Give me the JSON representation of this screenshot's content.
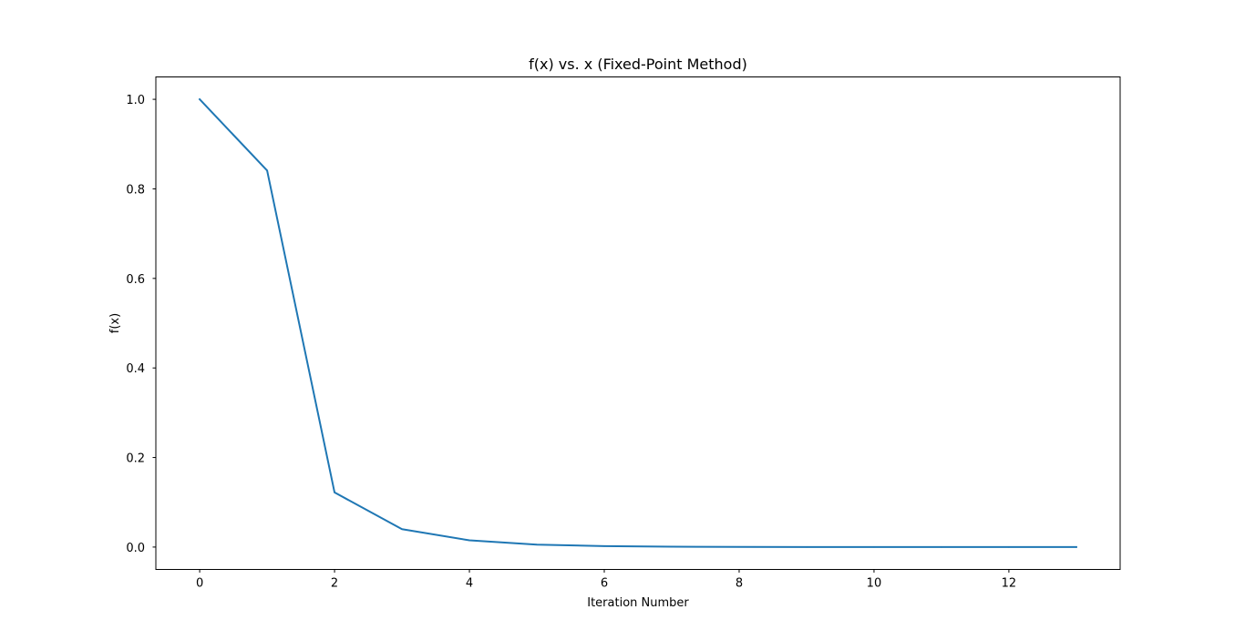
{
  "chart_data": {
    "type": "line",
    "title": "f(x) vs. x (Fixed-Point Method)",
    "xlabel": "Iteration Number",
    "ylabel": "f(x)",
    "xlim": [
      -0.65,
      13.65
    ],
    "ylim": [
      -0.05,
      1.05
    ],
    "xticks": [
      0,
      2,
      4,
      6,
      8,
      10,
      12
    ],
    "xtick_labels": [
      "0",
      "2",
      "4",
      "6",
      "8",
      "10",
      "12"
    ],
    "yticks": [
      0.0,
      0.2,
      0.4,
      0.6,
      0.8,
      1.0
    ],
    "ytick_labels": [
      "0.0",
      "0.2",
      "0.4",
      "0.6",
      "0.8",
      "1.0"
    ],
    "grid": false,
    "legend": "none",
    "series": [
      {
        "color": "#1f77b4",
        "x": [
          0,
          1,
          2,
          3,
          4,
          5,
          6,
          7,
          8,
          9,
          10,
          11,
          12,
          13
        ],
        "y": [
          1.0,
          0.841,
          0.122,
          0.04,
          0.015,
          0.0055,
          0.0021,
          0.0008,
          0.0003,
          0.00012,
          5e-05,
          2e-05,
          1e-05,
          0.0
        ]
      }
    ]
  }
}
